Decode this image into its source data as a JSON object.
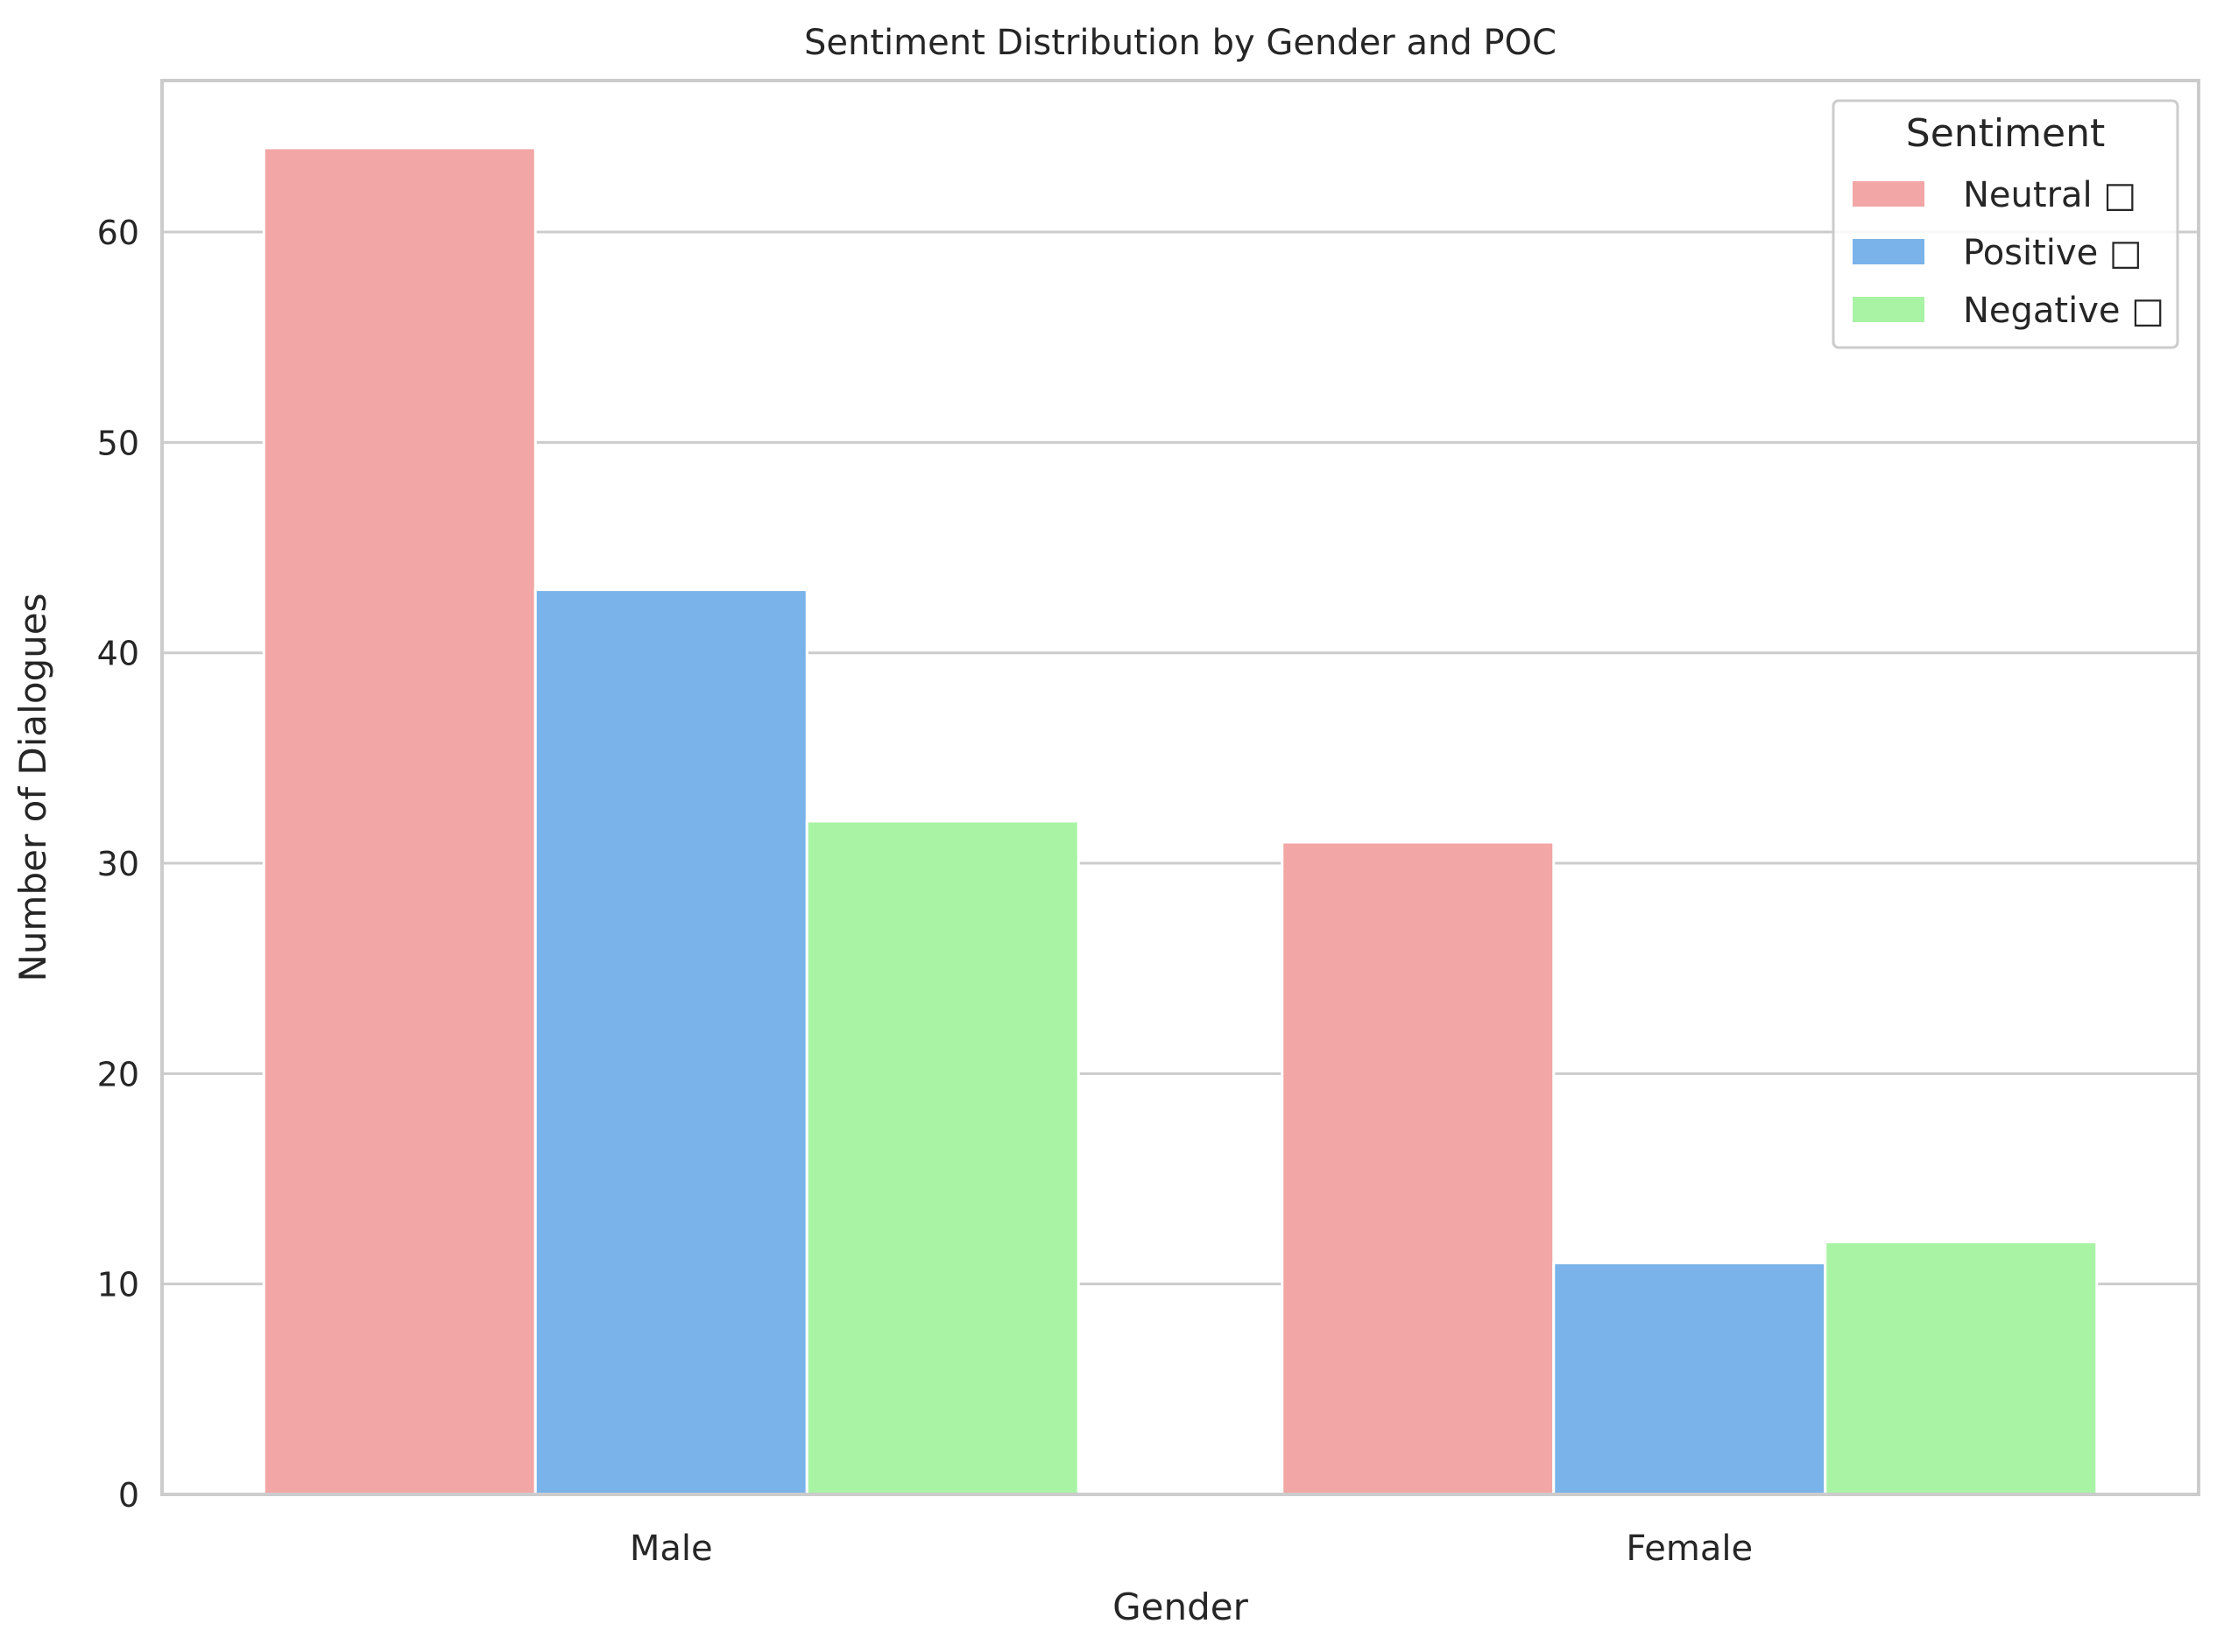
{
  "chart_data": {
    "type": "bar",
    "title": "Sentiment Distribution by Gender and POC",
    "xlabel": "Gender",
    "ylabel": "Number of Dialogues",
    "categories": [
      "Male",
      "Female"
    ],
    "series": [
      {
        "name": "Neutral □",
        "values": [
          64,
          31
        ],
        "color": "#f2a6a6"
      },
      {
        "name": "Positive □",
        "values": [
          43,
          11
        ],
        "color": "#7ab3ea"
      },
      {
        "name": "Negative □",
        "values": [
          32,
          12
        ],
        "color": "#a8f3a4"
      }
    ],
    "ylim": [
      0,
      67.2
    ],
    "yticks": [
      0,
      10,
      20,
      30,
      40,
      50,
      60
    ],
    "grid": true,
    "legend": {
      "title": "Sentiment",
      "placement": "top-right"
    }
  }
}
